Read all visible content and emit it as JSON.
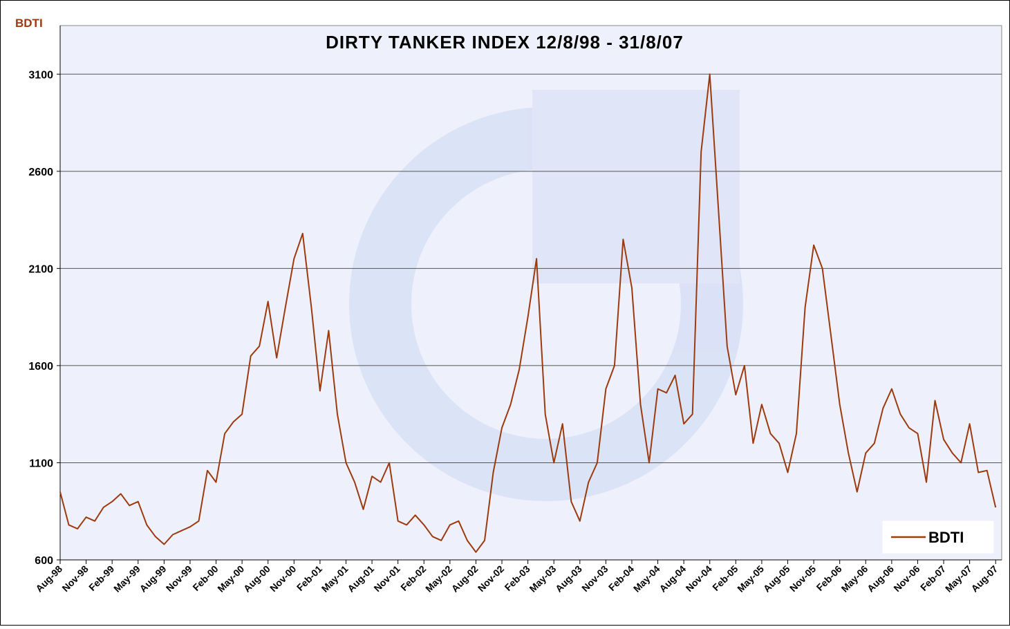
{
  "chart_data": {
    "type": "line",
    "title": "DIRTY TANKER INDEX 12/8/98 - 31/8/07",
    "y_label": "BDTI",
    "categories": [
      "Aug-98",
      null,
      null,
      "Nov-98",
      null,
      null,
      "Feb-99",
      null,
      null,
      "May-99",
      null,
      null,
      "Aug-99",
      null,
      null,
      "Nov-99",
      null,
      null,
      "Feb-00",
      null,
      null,
      "May-00",
      null,
      null,
      "Aug-00",
      null,
      null,
      "Nov-00",
      null,
      null,
      "Feb-01",
      null,
      null,
      "May-01",
      null,
      null,
      "Aug-01",
      null,
      null,
      "Nov-01",
      null,
      null,
      "Feb-02",
      null,
      null,
      "May-02",
      null,
      null,
      "Aug-02",
      null,
      null,
      "Nov-02",
      null,
      null,
      "Feb-03",
      null,
      null,
      "May-03",
      null,
      null,
      "Aug-03",
      null,
      null,
      "Nov-03",
      null,
      null,
      "Feb-04",
      null,
      null,
      "May-04",
      null,
      null,
      "Aug-04",
      null,
      null,
      "Nov-04",
      null,
      null,
      "Feb-05",
      null,
      null,
      "May-05",
      null,
      null,
      "Aug-05",
      null,
      null,
      "Nov-05",
      null,
      null,
      "Feb-06",
      null,
      null,
      "May-06",
      null,
      null,
      "Aug-06",
      null,
      null,
      "Nov-06",
      null,
      null,
      "Feb-07",
      null,
      null,
      "May-07",
      null,
      null,
      "Aug-07"
    ],
    "series": [
      {
        "name": "BDTI",
        "color": "#9c3a0e",
        "values": [
          950,
          780,
          760,
          820,
          800,
          870,
          900,
          940,
          880,
          900,
          780,
          720,
          680,
          730,
          750,
          770,
          800,
          1060,
          1000,
          1250,
          1310,
          1350,
          1650,
          1700,
          1930,
          1640,
          1900,
          2150,
          2280,
          1900,
          1470,
          1780,
          1350,
          1100,
          1000,
          860,
          1030,
          1000,
          1100,
          800,
          780,
          830,
          780,
          720,
          700,
          780,
          800,
          700,
          640,
          700,
          1050,
          1280,
          1400,
          1580,
          1850,
          2150,
          1350,
          1100,
          1300,
          900,
          800,
          1000,
          1100,
          1480,
          1600,
          2250,
          2000,
          1400,
          1100,
          1480,
          1460,
          1550,
          1300,
          1350,
          2700,
          3100,
          2400,
          1700,
          1450,
          1600,
          1200,
          1400,
          1250,
          1200,
          1050,
          1250,
          1900,
          2220,
          2100,
          1750,
          1400,
          1150,
          950,
          1150,
          1200,
          1380,
          1480,
          1350,
          1280,
          1250,
          1000,
          1420,
          1220,
          1150,
          1100,
          1300,
          1050,
          1060,
          870
        ]
      }
    ],
    "ylim": [
      600,
      3350
    ],
    "yticks": [
      600,
      1100,
      1600,
      2100,
      2600,
      3100
    ],
    "grid": true,
    "legend": "lower right"
  }
}
